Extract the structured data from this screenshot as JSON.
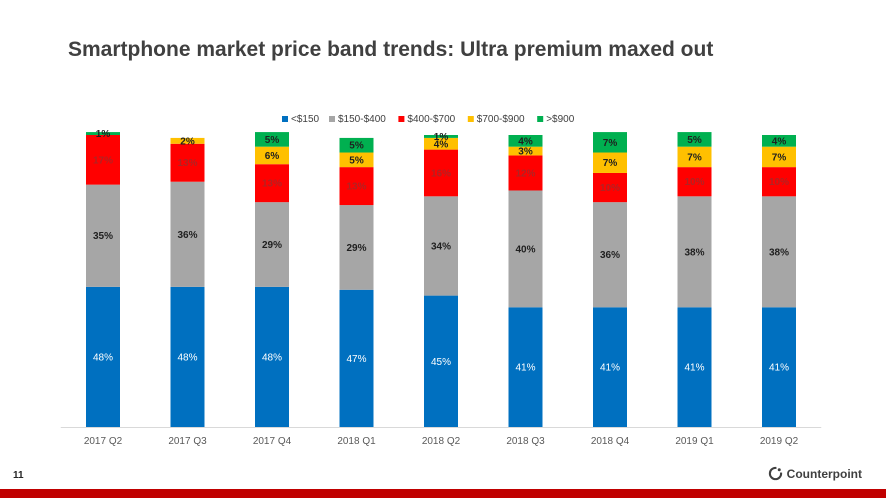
{
  "page_title": "Smartphone market price band trends: Ultra premium maxed out",
  "page_number": "11",
  "brand": {
    "name": "Counterpoint",
    "icon": "counterpoint-logo-icon"
  },
  "chart_data": {
    "type": "bar",
    "stacked": true,
    "title": "",
    "xlabel": "",
    "ylabel": "",
    "ylim": [
      0,
      100
    ],
    "grid": false,
    "legend_position": "top",
    "categories": [
      "2017 Q2",
      "2017 Q3",
      "2017 Q4",
      "2018 Q1",
      "2018 Q2",
      "2018 Q3",
      "2018 Q4",
      "2019 Q1",
      "2019 Q2"
    ],
    "series": [
      {
        "name": "<$150",
        "color": "#0070C0",
        "values": [
          48,
          48,
          48,
          47,
          45,
          41,
          41,
          41,
          41
        ],
        "labels": [
          "48%",
          "48%",
          "48%",
          "47%",
          "45%",
          "41%",
          "41%",
          "41%",
          "41%"
        ]
      },
      {
        "name": "$150-$400",
        "color": "#A6A6A6",
        "values": [
          35,
          36,
          29,
          29,
          34,
          40,
          36,
          38,
          38
        ],
        "labels": [
          "35%",
          "36%",
          "29%",
          "29%",
          "34%",
          "40%",
          "36%",
          "38%",
          "38%"
        ]
      },
      {
        "name": "$400-$700",
        "color": "#FF0000",
        "values": [
          17,
          13,
          13,
          13,
          16,
          12,
          10,
          10,
          10
        ],
        "labels": [
          "17%",
          "13%",
          "13%",
          "13%",
          "16%",
          "12%",
          "10%",
          "10%",
          "10%"
        ]
      },
      {
        "name": "$700-$900",
        "color": "#FFC000",
        "values": [
          0,
          2,
          6,
          5,
          4,
          3,
          7,
          7,
          7
        ],
        "labels": [
          "",
          "2%",
          "6%",
          "5%",
          "4%",
          "3%",
          "7%",
          "7%",
          "7%"
        ]
      },
      {
        "name": ">$900",
        "color": "#00B050",
        "values": [
          1,
          0,
          5,
          5,
          1,
          4,
          7,
          5,
          4
        ],
        "labels": [
          "1%",
          "",
          "5%",
          "5%",
          "1%",
          "4%",
          "7%",
          "5%",
          "4%"
        ]
      }
    ]
  }
}
